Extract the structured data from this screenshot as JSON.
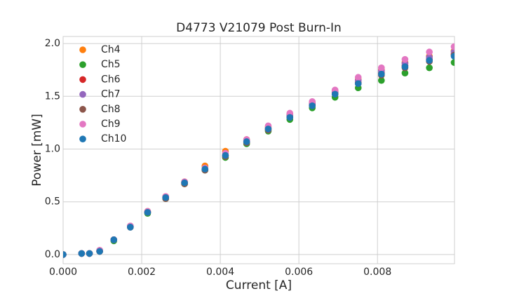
{
  "chart_data": {
    "type": "scatter",
    "title": "D4773 V21079 Post Burn-In",
    "x_label": "Current [A]",
    "y_label": "Power [mW]",
    "x": [
      0,
      0.00047,
      0.00067,
      0.00093,
      0.00129,
      0.00171,
      0.00215,
      0.00261,
      0.00309,
      0.00361,
      0.00413,
      0.00467,
      0.00522,
      0.00577,
      0.00634,
      0.00692,
      0.00751,
      0.0081,
      0.0087,
      0.00932,
      0.00995
    ],
    "series": [
      {
        "name": "Ch4",
        "color": "#ff7f0e",
        "values": [
          0,
          0.01,
          0.01,
          0.04,
          0.14,
          0.27,
          0.41,
          0.55,
          0.69,
          0.84,
          0.98,
          1.09,
          1.21,
          1.33,
          1.44,
          1.55,
          1.66,
          1.75,
          1.82,
          1.88,
          1.93
        ]
      },
      {
        "name": "Ch5",
        "color": "#2ca02c",
        "values": [
          0,
          0.01,
          0.01,
          0.03,
          0.13,
          0.26,
          0.39,
          0.53,
          0.67,
          0.8,
          0.92,
          1.05,
          1.17,
          1.28,
          1.39,
          1.49,
          1.58,
          1.65,
          1.72,
          1.77,
          1.82
        ]
      },
      {
        "name": "Ch6",
        "color": "#d62728",
        "values": [
          0,
          0.01,
          0.01,
          0.03,
          0.14,
          0.26,
          0.4,
          0.54,
          0.68,
          0.81,
          0.94,
          1.07,
          1.19,
          1.31,
          1.42,
          1.53,
          1.63,
          1.72,
          1.79,
          1.85,
          1.9
        ]
      },
      {
        "name": "Ch7",
        "color": "#9467bd",
        "values": [
          0,
          0.01,
          0.01,
          0.04,
          0.14,
          0.27,
          0.4,
          0.54,
          0.68,
          0.81,
          0.94,
          1.08,
          1.2,
          1.32,
          1.43,
          1.54,
          1.65,
          1.74,
          1.81,
          1.87,
          1.92
        ]
      },
      {
        "name": "Ch8",
        "color": "#8c564b",
        "values": [
          0,
          0.01,
          0.01,
          0.03,
          0.14,
          0.26,
          0.4,
          0.53,
          0.67,
          0.8,
          0.93,
          1.06,
          1.18,
          1.3,
          1.41,
          1.52,
          1.62,
          1.7,
          1.77,
          1.83,
          1.89
        ]
      },
      {
        "name": "Ch9",
        "color": "#e377c2",
        "values": [
          0,
          0.01,
          0.01,
          0.04,
          0.14,
          0.27,
          0.41,
          0.55,
          0.69,
          0.82,
          0.96,
          1.09,
          1.22,
          1.34,
          1.45,
          1.56,
          1.68,
          1.77,
          1.85,
          1.92,
          1.97
        ]
      },
      {
        "name": "Ch10",
        "color": "#1f77b4",
        "values": [
          0,
          0.01,
          0.01,
          0.03,
          0.14,
          0.26,
          0.4,
          0.54,
          0.68,
          0.81,
          0.94,
          1.07,
          1.19,
          1.3,
          1.41,
          1.52,
          1.62,
          1.71,
          1.78,
          1.84,
          1.88
        ]
      }
    ],
    "xlim": [
      0,
      0.00996
    ],
    "ylim": [
      -0.087,
      2.067
    ],
    "xticks": [
      {
        "value": 0,
        "label": "0.000"
      },
      {
        "value": 0.002,
        "label": "0.002"
      },
      {
        "value": 0.004,
        "label": "0.004"
      },
      {
        "value": 0.006,
        "label": "0.006"
      },
      {
        "value": 0.008,
        "label": "0.008"
      }
    ],
    "yticks": [
      {
        "value": 0,
        "label": "0.0"
      },
      {
        "value": 0.5,
        "label": "0.5"
      },
      {
        "value": 1,
        "label": "1.0"
      },
      {
        "value": 1.5,
        "label": "1.5"
      },
      {
        "value": 2,
        "label": "2.0"
      }
    ],
    "grid": true,
    "legend": "upper-left"
  }
}
